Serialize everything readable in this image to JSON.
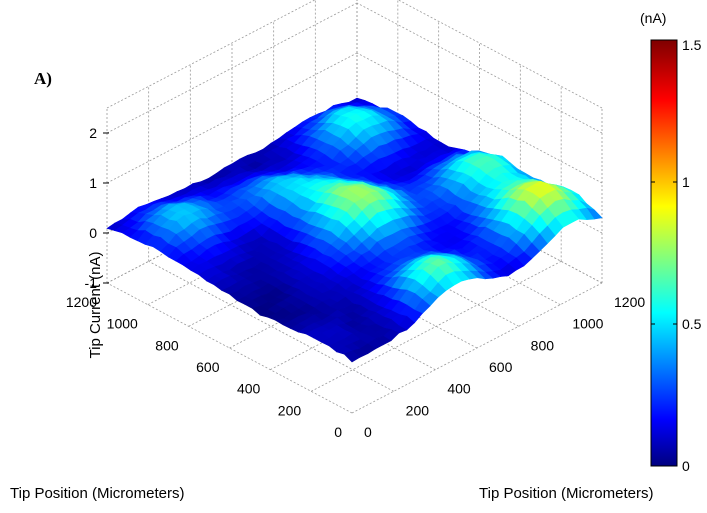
{
  "panel_label": "A)",
  "chart_data": {
    "type": "surface",
    "title": "",
    "zlabel": "Tip Current (nA)",
    "xlabel": "Tip Position (Micrometers)",
    "ylabel": "Tip Position (Micrometers)",
    "zlim": [
      -1,
      2
    ],
    "xlim": [
      0,
      1200
    ],
    "ylim": [
      0,
      1200
    ],
    "z_ticks": [
      "-1",
      "0",
      "1",
      "2"
    ],
    "x_ticks": [
      "0",
      "200",
      "400",
      "600",
      "800",
      "1000",
      "1200"
    ],
    "y_ticks": [
      "0",
      "200",
      "400",
      "600",
      "800",
      "1000",
      "1200"
    ],
    "grid": true,
    "colorbar": {
      "unit": "(nA)",
      "range": [
        0,
        1.5
      ],
      "ticks": [
        "0",
        "0.5",
        "1",
        "1.5"
      ],
      "colormap": "jet"
    },
    "baseline_current": 0.05,
    "peaks": [
      {
        "x": 150,
        "y": 1050,
        "height": 0.9,
        "width": 130
      },
      {
        "x": 100,
        "y": 500,
        "height": 0.65,
        "width": 120
      },
      {
        "x": 580,
        "y": 620,
        "height": 0.75,
        "width": 140
      },
      {
        "x": 1000,
        "y": 150,
        "height": 0.45,
        "width": 120
      },
      {
        "x": 1000,
        "y": 1000,
        "height": 0.5,
        "width": 130
      },
      {
        "x": 900,
        "y": 550,
        "height": 0.4,
        "width": 120
      },
      {
        "x": 500,
        "y": 1100,
        "height": 0.55,
        "width": 120
      }
    ]
  }
}
